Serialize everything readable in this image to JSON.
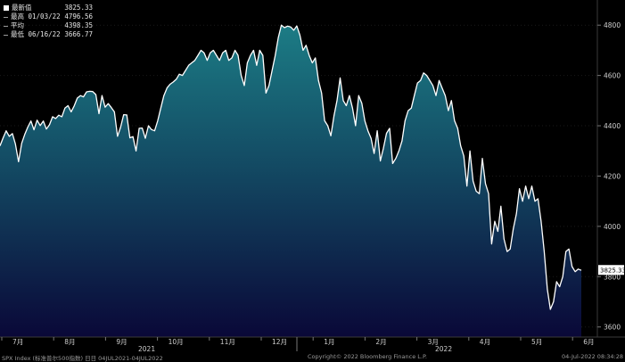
{
  "legend": [
    {
      "label": "最新值",
      "value": "3825.33",
      "swatch": "white"
    },
    {
      "label": "最高 01/03/22",
      "value": "4796.56",
      "swatch": "dash"
    },
    {
      "label": "平均",
      "value": "4398.35",
      "swatch": "dash"
    },
    {
      "label": "最低 06/16/22",
      "value": "3666.77",
      "swatch": "dash"
    }
  ],
  "footer": {
    "left": "SPX Index (标准普尔500指数)  日日 04JUL2021-04JUL2022",
    "center": "Copyright© 2022 Bloomberg Finance L.P.",
    "right": "04-Jul-2022 08:34:28"
  },
  "colors": {
    "background": "#000000",
    "area_top": "#1b6f7a",
    "area_bottom": "#0b0a38",
    "line": "#ffffff"
  },
  "chart_data": {
    "type": "area",
    "ylim": [
      3560,
      4900
    ],
    "yticks": [
      3600,
      3800,
      4000,
      4200,
      4400,
      4600,
      4800
    ],
    "ytick_labels": [
      "3600",
      "3800",
      "4000",
      "4200",
      "4400",
      "4600",
      "4800"
    ],
    "months": [
      "7月",
      "8月",
      "9月",
      "10月",
      "11月",
      "12月",
      "1月",
      "2月",
      "3月",
      "4月",
      "5月",
      "6月"
    ],
    "years": [
      "2021",
      "2022"
    ],
    "last_value_label": "3825.33",
    "series": [
      {
        "values": [
          4320,
          4352,
          4380,
          4358,
          4369,
          4327,
          4257,
          4330,
          4365,
          4395,
          4419,
          4384,
          4422,
          4401,
          4419,
          4387,
          4404,
          4436,
          4429,
          4442,
          4436,
          4470,
          4480,
          4455,
          4479,
          4510,
          4520,
          4515,
          4535,
          4537,
          4536,
          4524,
          4448,
          4520,
          4474,
          4488,
          4472,
          4455,
          4358,
          4395,
          4444,
          4443,
          4352,
          4357,
          4300,
          4390,
          4391,
          4350,
          4400,
          4385,
          4380,
          4420,
          4470,
          4520,
          4550,
          4565,
          4574,
          4585,
          4605,
          4600,
          4620,
          4640,
          4650,
          4660,
          4680,
          4700,
          4690,
          4660,
          4690,
          4700,
          4680,
          4660,
          4690,
          4700,
          4660,
          4670,
          4700,
          4680,
          4600,
          4560,
          4650,
          4680,
          4700,
          4640,
          4700,
          4680,
          4530,
          4560,
          4620,
          4680,
          4750,
          4800,
          4790,
          4796,
          4793,
          4780,
          4797,
          4760,
          4700,
          4720,
          4680,
          4650,
          4670,
          4580,
          4530,
          4420,
          4400,
          4360,
          4440,
          4500,
          4590,
          4500,
          4480,
          4520,
          4470,
          4400,
          4520,
          4490,
          4420,
          4380,
          4350,
          4290,
          4380,
          4260,
          4310,
          4370,
          4390,
          4250,
          4270,
          4300,
          4340,
          4420,
          4460,
          4470,
          4520,
          4570,
          4580,
          4610,
          4600,
          4580,
          4560,
          4520,
          4580,
          4550,
          4520,
          4460,
          4500,
          4420,
          4390,
          4320,
          4280,
          4160,
          4300,
          4180,
          4140,
          4130,
          4270,
          4170,
          4130,
          3930,
          4020,
          3980,
          4080,
          3950,
          3900,
          3910,
          3990,
          4050,
          4150,
          4100,
          4160,
          4110,
          4160,
          4100,
          4110,
          4020,
          3900,
          3750,
          3670,
          3700,
          3780,
          3760,
          3800,
          3900,
          3910,
          3840,
          3820,
          3830,
          3825
        ]
      }
    ]
  }
}
